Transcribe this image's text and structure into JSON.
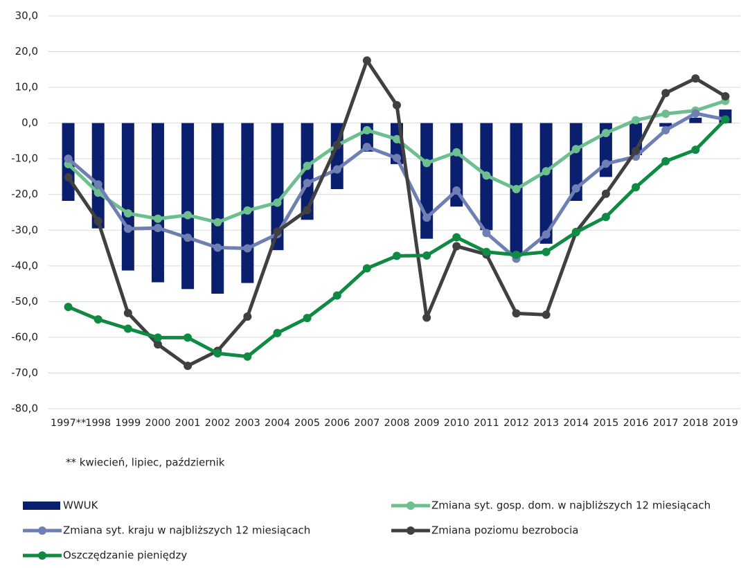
{
  "chart_data": {
    "type": "bar_line",
    "footnote": "** kwiecień, lipiec, październik",
    "categories": [
      "1997**",
      "1998",
      "1999",
      "2000",
      "2001",
      "2002",
      "2003",
      "2004",
      "2005",
      "2006",
      "2007",
      "2008",
      "2009",
      "2010",
      "2011",
      "2012",
      "2013",
      "2014",
      "2015",
      "2016",
      "2017",
      "2018",
      "2019"
    ],
    "series": [
      {
        "name": "WWUK",
        "type": "bar",
        "color": "#0b1f6f",
        "values": [
          -21.8,
          -29.5,
          -41.3,
          -44.6,
          -46.5,
          -47.8,
          -44.8,
          -35.6,
          -27.1,
          -18.5,
          -8,
          -11.5,
          -32.4,
          -23.4,
          -30,
          -37,
          -33.8,
          -21.8,
          -15.1,
          -9,
          -1,
          1.5,
          3.8
        ]
      },
      {
        "name": "Zmiana syt. gosp. dom. w najbliższych 12 miesiącach",
        "type": "line",
        "color": "#6dbf8f",
        "values": [
          -11.5,
          -19.5,
          -25.3,
          -26.8,
          -25.8,
          -27.8,
          -24.5,
          -22.3,
          -12,
          -6.2,
          -2,
          -4.5,
          -11.2,
          -8.2,
          -14.7,
          -18.5,
          -13.5,
          -7.3,
          -2.8,
          0.8,
          2.6,
          3.5,
          6.2
        ]
      },
      {
        "name": "Zmiana syt. kraju w najbliższych 12 miesiącach",
        "type": "line",
        "color": "#6f7fb4",
        "values": [
          -10,
          -17.2,
          -29.6,
          -29.4,
          -32.1,
          -34.9,
          -35.1,
          -31.1,
          -16.8,
          -13,
          -6.7,
          -9.8,
          -26.5,
          -18.9,
          -30.8,
          -38,
          -31.2,
          -18.3,
          -11.4,
          -9.4,
          -2,
          2.7,
          1
        ]
      },
      {
        "name": "Zmiana poziomu bezrobocia",
        "type": "line",
        "color": "#404040",
        "values": [
          -15.2,
          -27.5,
          -53.2,
          -62,
          -68,
          -63.8,
          -54.2,
          -30.4,
          -24.4,
          -6.2,
          17.5,
          5,
          -54.5,
          -34.5,
          -36.8,
          -53.3,
          -53.7,
          -30.5,
          -19.8,
          -7.8,
          8.4,
          12.5,
          7.5
        ]
      },
      {
        "name": "Oszczędzanie pieniędzy",
        "type": "line",
        "color": "#0e8a43",
        "values": [
          -51.5,
          -55,
          -57.6,
          -60.1,
          -60.1,
          -64.5,
          -65.4,
          -58.8,
          -54.6,
          -48.3,
          -40.7,
          -37.2,
          -37.1,
          -32,
          -36.1,
          -36.9,
          -36.1,
          -30.6,
          -26.3,
          -18,
          -10.7,
          -7.5,
          1
        ]
      }
    ],
    "ylim": [
      -80,
      30
    ],
    "yticks": [
      {
        "value": -80,
        "label": "-80,0"
      },
      {
        "value": -70,
        "label": "-70,0"
      },
      {
        "value": -60,
        "label": "-60,0"
      },
      {
        "value": -50,
        "label": "-50,0"
      },
      {
        "value": -40,
        "label": "-40,0"
      },
      {
        "value": -30,
        "label": "-30,0"
      },
      {
        "value": -20,
        "label": "-20,0"
      },
      {
        "value": -10,
        "label": "-10,0"
      },
      {
        "value": 0,
        "label": "0,0"
      },
      {
        "value": 10,
        "label": "10,0"
      },
      {
        "value": 20,
        "label": "20,0"
      },
      {
        "value": 30,
        "label": "30,0"
      }
    ],
    "grid": true
  }
}
